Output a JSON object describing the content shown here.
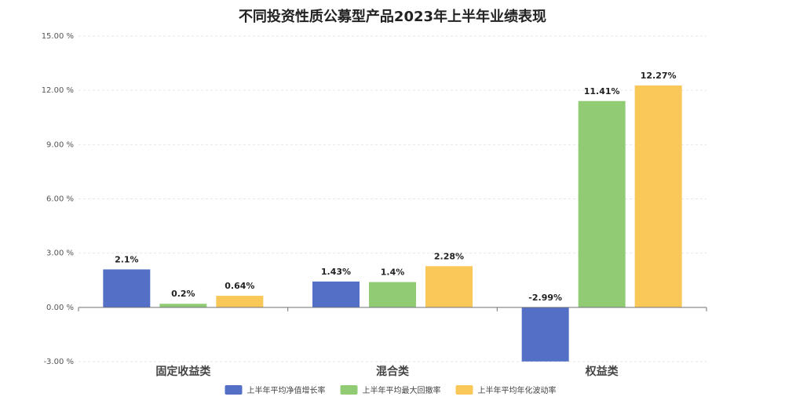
{
  "chart_data": {
    "type": "bar",
    "title": "不同投资性质公募型产品2023年上半年业绩表现",
    "categories": [
      "固定收益类",
      "混合类",
      "权益类"
    ],
    "series": [
      {
        "name": "上半年平均净值增长率",
        "color": "#5470c6",
        "values": [
          2.1,
          1.43,
          -2.99
        ],
        "labels": [
          "2.1%",
          "1.43%",
          "-2.99%"
        ]
      },
      {
        "name": "上半年平均最大回撤率",
        "color": "#91cc75",
        "values": [
          0.2,
          1.4,
          11.41
        ],
        "labels": [
          "0.2%",
          "1.4%",
          "11.41%"
        ]
      },
      {
        "name": "上半年平均年化波动率",
        "color": "#fac858",
        "values": [
          0.64,
          2.28,
          12.27
        ],
        "labels": [
          "0.64%",
          "2.28%",
          "12.27%"
        ]
      }
    ],
    "ylim": [
      -3,
      15
    ],
    "yticks": [
      -3,
      0,
      3,
      6,
      9,
      12,
      15
    ],
    "ytick_labels": [
      "-3.00 %",
      "0.00 %",
      "3.00 %",
      "6.00 %",
      "9.00 %",
      "12.00 %",
      "15.00 %"
    ],
    "xlabel": "",
    "ylabel": "",
    "grid": true,
    "legend_position": "bottom-center"
  }
}
